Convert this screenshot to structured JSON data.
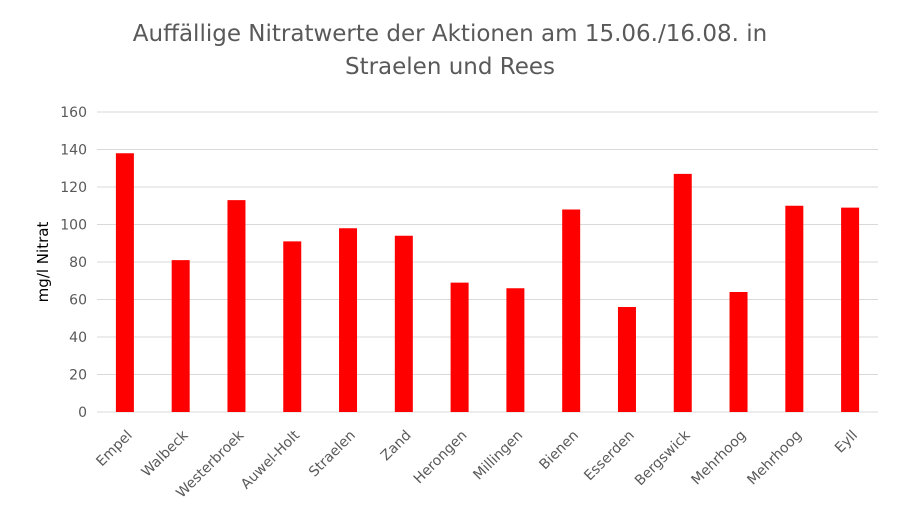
{
  "chart_data": {
    "type": "bar",
    "title_lines": [
      "Auffällige Nitratwerte der Aktionen am 15.06./16.08. in",
      "Straelen und Rees"
    ],
    "ylabel": "mg/l Nitrat",
    "xlabel": "",
    "ylim": [
      0,
      160
    ],
    "yticks": [
      0,
      20,
      40,
      60,
      80,
      100,
      120,
      140,
      160
    ],
    "grid": true,
    "legend": "none",
    "bar_color": "#ff0000",
    "grid_color": "#d9d9d9",
    "categories": [
      "Empel",
      "Walbeck",
      "Westerbroek",
      "Auwel-Holt",
      "Straelen",
      "Zand",
      "Herongen",
      "Millingen",
      "Bienen",
      "Esserden",
      "Bergswick",
      "Mehrhoog",
      "Mehrhoog",
      "Eyll"
    ],
    "values": [
      138,
      81,
      113,
      91,
      98,
      94,
      69,
      66,
      108,
      56,
      127,
      64,
      110,
      109
    ]
  }
}
